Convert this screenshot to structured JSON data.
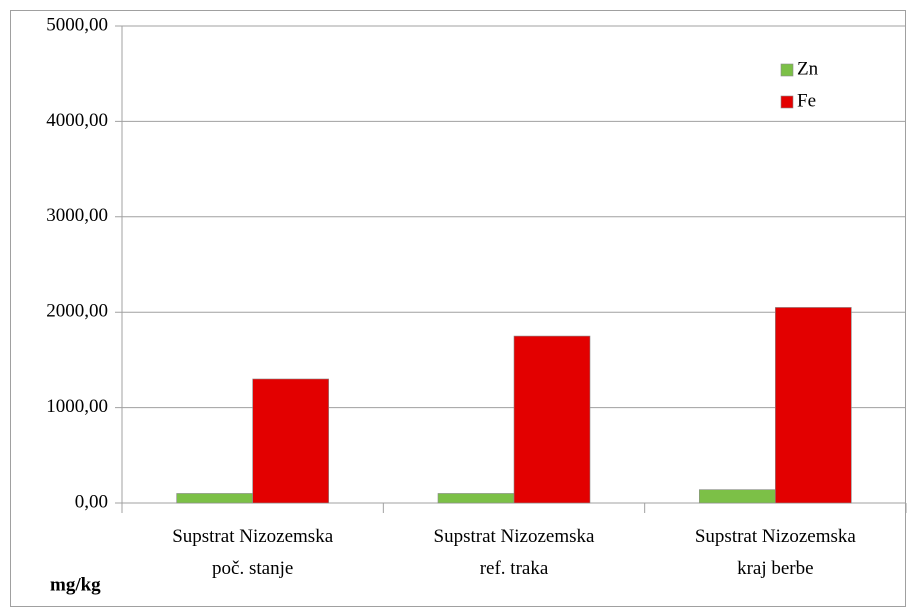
{
  "chart_data": {
    "type": "bar",
    "y_axis_label": "mg/kg",
    "categories": [
      "Supstrat Nizozemska\npoč. stanje",
      "Supstrat Nizozemska\nref. traka",
      "Supstrat Nizozemska\nkraj berbe"
    ],
    "series": [
      {
        "name": "Zn",
        "color": "#7cc047",
        "values": [
          100,
          100,
          140
        ]
      },
      {
        "name": "Fe",
        "color": "#e30000",
        "values": [
          1300,
          1750,
          2050
        ]
      }
    ],
    "ylim": [
      0,
      5000
    ],
    "yticks": [
      {
        "value": 0,
        "label": "0,00"
      },
      {
        "value": 1000,
        "label": "1000,00"
      },
      {
        "value": 2000,
        "label": "2000,00"
      },
      {
        "value": 3000,
        "label": "3000,00"
      },
      {
        "value": 4000,
        "label": "4000,00"
      },
      {
        "value": 5000,
        "label": "5000,00"
      }
    ],
    "grid": true,
    "legend": "top-right"
  }
}
